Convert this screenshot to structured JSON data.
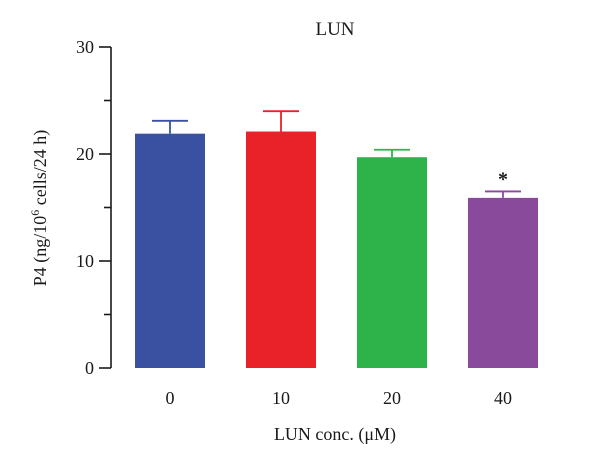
{
  "chart_data": {
    "type": "bar",
    "title": "LUN",
    "xlabel": "LUN conc. (μM)",
    "ylabel_parts": [
      "P4 (ng/10",
      "6",
      " cells/24 h)"
    ],
    "categories": [
      "0",
      "10",
      "20",
      "40"
    ],
    "values": [
      21.9,
      22.1,
      19.7,
      15.9
    ],
    "errors": [
      1.2,
      1.9,
      0.7,
      0.6
    ],
    "colors": [
      "#3a51a2",
      "#e92128",
      "#2db34a",
      "#8a4a9c"
    ],
    "ylim": [
      0,
      30
    ],
    "yticks": [
      0,
      10,
      20,
      30
    ],
    "annotations": [
      {
        "category": "40",
        "text": "*"
      }
    ],
    "grid": false,
    "legend": "none"
  }
}
